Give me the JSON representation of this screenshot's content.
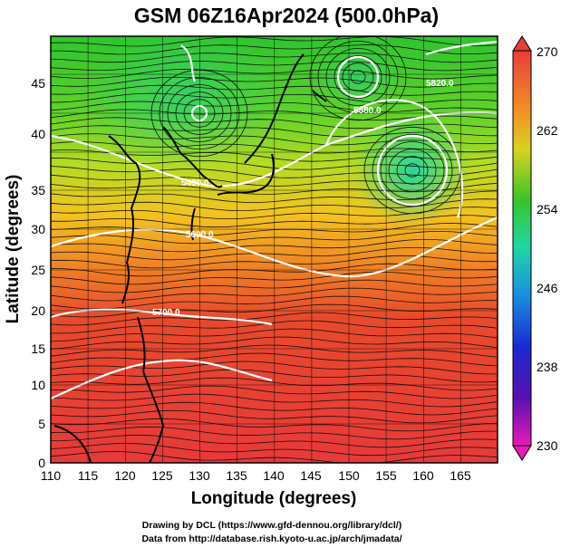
{
  "title": "GSM 06Z16Apr2024 (500.0hPa)",
  "xlabel": "Longitude (degrees)",
  "ylabel": "Latitude  (degrees)",
  "x_ticks": [
    "110",
    "115",
    "120",
    "125",
    "130",
    "135",
    "140",
    "145",
    "150",
    "155",
    "160",
    "165"
  ],
  "y_ticks": [
    "0",
    "5",
    "10",
    "15",
    "20",
    "25",
    "30",
    "35",
    "40",
    "45"
  ],
  "colorbar": {
    "ticks": [
      "270",
      "262",
      "254",
      "246",
      "238",
      "230"
    ]
  },
  "contour_labels": [
    "5400.0",
    "5600.0",
    "5700.0",
    "5820.0",
    "5880.0"
  ],
  "credits": {
    "line1": "Drawing by DCL (https://www.gfd-dennou.org/library/dcl/)",
    "line2": "Data from http://database.rish.kyoto-u.ac.jp/arch/jmadata/"
  },
  "chart_data": {
    "type": "heatmap",
    "title": "GSM 06Z16Apr2024 (500.0hPa)",
    "xlabel": "Longitude (degrees)",
    "ylabel": "Latitude  (degrees)",
    "xlim": [
      110,
      169
    ],
    "ylim": [
      0,
      50
    ],
    "field": "temperature (shaded), streamlines, height contours",
    "colorbar_range": [
      230,
      270
    ],
    "colorbar_ticks": [
      270,
      262,
      254,
      246,
      238,
      230
    ],
    "grid": true
  }
}
